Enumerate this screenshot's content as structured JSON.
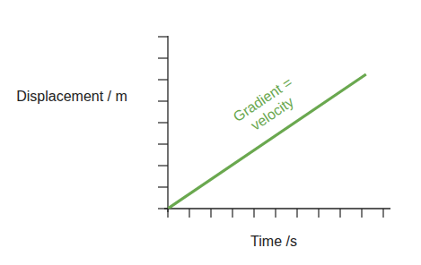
{
  "chart_data": {
    "type": "line",
    "x_label": "Time /s",
    "y_label": "Displacement / m",
    "annotation": "Gradient = velocity",
    "x": [
      0,
      9.2
    ],
    "values": [
      0,
      6.25
    ],
    "color": "#6aa84f",
    "xlim": [
      0,
      10
    ],
    "ylim": [
      0,
      8
    ],
    "xticks": [
      0,
      1,
      2,
      3,
      4,
      5,
      6,
      7,
      8,
      9,
      10
    ],
    "yticks": [
      0,
      1,
      2,
      3,
      4,
      5,
      6,
      7,
      8
    ],
    "tick_labels": false,
    "grid": false
  }
}
